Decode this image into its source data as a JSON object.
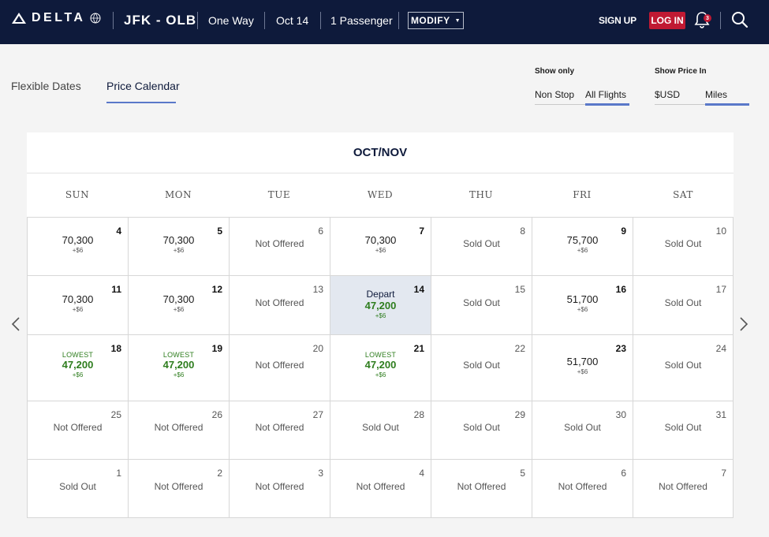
{
  "header": {
    "brand": "DELTA",
    "route": "JFK - OLB",
    "trip_type": "One Way",
    "date": "Oct 14",
    "passengers": "1 Passenger",
    "modify_label": "MODIFY",
    "signup_label": "SIGN UP",
    "login_label": "LOG IN",
    "notification_count": "3"
  },
  "view_tabs": [
    {
      "label": "Flexible Dates",
      "active": false
    },
    {
      "label": "Price Calendar",
      "active": true
    }
  ],
  "show_only": {
    "title": "Show only",
    "options": [
      {
        "label": "Non Stop",
        "active": false
      },
      {
        "label": "All Flights",
        "active": true
      }
    ]
  },
  "show_price_in": {
    "title": "Show Price In",
    "options": [
      {
        "label": "$USD",
        "active": false
      },
      {
        "label": "Miles",
        "active": true
      }
    ]
  },
  "calendar": {
    "month_label": "OCT/NOV",
    "weekdays": [
      "SUN",
      "MON",
      "TUE",
      "WED",
      "THU",
      "FRI",
      "SAT"
    ],
    "weeks": [
      [
        {
          "day": "4",
          "price": "70,300",
          "tax": "+$6"
        },
        {
          "day": "5",
          "price": "70,300",
          "tax": "+$6"
        },
        {
          "day": "6",
          "status": "Not Offered"
        },
        {
          "day": "7",
          "price": "70,300",
          "tax": "+$6"
        },
        {
          "day": "8",
          "status": "Sold Out"
        },
        {
          "day": "9",
          "price": "75,700",
          "tax": "+$6"
        },
        {
          "day": "10",
          "status": "Sold Out"
        }
      ],
      [
        {
          "day": "11",
          "price": "70,300",
          "tax": "+$6"
        },
        {
          "day": "12",
          "price": "70,300",
          "tax": "+$6"
        },
        {
          "day": "13",
          "status": "Not Offered"
        },
        {
          "day": "14",
          "label": "Depart",
          "price": "47,200",
          "tax": "+$6",
          "selected": true,
          "lowest": true
        },
        {
          "day": "15",
          "status": "Sold Out"
        },
        {
          "day": "16",
          "price": "51,700",
          "tax": "+$6"
        },
        {
          "day": "17",
          "status": "Sold Out"
        }
      ],
      [
        {
          "day": "18",
          "label": "LOWEST",
          "price": "47,200",
          "tax": "+$6",
          "lowest": true
        },
        {
          "day": "19",
          "label": "LOWEST",
          "price": "47,200",
          "tax": "+$6",
          "lowest": true
        },
        {
          "day": "20",
          "status": "Not Offered"
        },
        {
          "day": "21",
          "label": "LOWEST",
          "price": "47,200",
          "tax": "+$6",
          "lowest": true
        },
        {
          "day": "22",
          "status": "Sold Out"
        },
        {
          "day": "23",
          "price": "51,700",
          "tax": "+$6"
        },
        {
          "day": "24",
          "status": "Sold Out"
        }
      ],
      [
        {
          "day": "25",
          "status": "Not Offered"
        },
        {
          "day": "26",
          "status": "Not Offered"
        },
        {
          "day": "27",
          "status": "Not Offered"
        },
        {
          "day": "28",
          "status": "Sold Out"
        },
        {
          "day": "29",
          "status": "Sold Out"
        },
        {
          "day": "30",
          "status": "Sold Out"
        },
        {
          "day": "31",
          "status": "Sold Out"
        }
      ],
      [
        {
          "day": "1",
          "status": "Sold Out"
        },
        {
          "day": "2",
          "status": "Not Offered"
        },
        {
          "day": "3",
          "status": "Not Offered"
        },
        {
          "day": "4",
          "status": "Not Offered"
        },
        {
          "day": "5",
          "status": "Not Offered"
        },
        {
          "day": "6",
          "status": "Not Offered"
        },
        {
          "day": "7",
          "status": "Not Offered"
        }
      ]
    ]
  },
  "colors": {
    "header_bg": "#0e1a3b",
    "login_red": "#c01933",
    "accent_blue": "#5a78c9",
    "lowest_green": "#2e7d1e",
    "selected_bg": "#e3e8f0"
  },
  "icons": {
    "logo": "delta-widget-icon",
    "globe": "skyteam-globe-icon",
    "notifications": "bell-icon",
    "search": "search-icon",
    "prev": "chevron-left-icon",
    "next": "chevron-right-icon"
  }
}
